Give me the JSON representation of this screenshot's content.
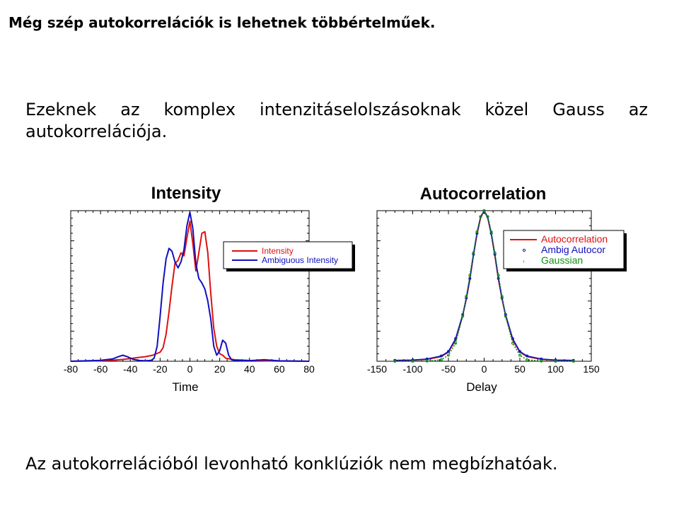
{
  "slide": {
    "title": "Még szép autokorrelációk is lehetnek többértelműek.",
    "paragraph1": "Ezeknek az komplex intenzitáselolszásoknak közel Gauss az autokorrelációja.",
    "paragraph2": "Az autokorrelációból levonható konklúziók nem megbízhatóak."
  },
  "chart_data": [
    {
      "type": "line",
      "title": "Intensity",
      "xlabel": "Time",
      "ylabel": "",
      "xlim": [
        -80,
        80
      ],
      "xticks": [
        "-80",
        "-60",
        "-40",
        "-20",
        "0",
        "20",
        "40",
        "60",
        "80"
      ],
      "ylim": [
        0,
        1
      ],
      "legend_position": "top-right",
      "series": [
        {
          "name": "Intensity",
          "color": "#e01010",
          "x": [
            -80,
            -60,
            -50,
            -45,
            -40,
            -35,
            -30,
            -25,
            -20,
            -18,
            -16,
            -14,
            -12,
            -10,
            -8,
            -6,
            -4,
            -2,
            0,
            2,
            4,
            6,
            8,
            10,
            12,
            14,
            16,
            18,
            20,
            22,
            24,
            30,
            40,
            60,
            80
          ],
          "y": [
            0,
            0.003,
            0.008,
            0.012,
            0.018,
            0.025,
            0.03,
            0.04,
            0.06,
            0.09,
            0.18,
            0.33,
            0.5,
            0.65,
            0.67,
            0.72,
            0.7,
            0.82,
            0.93,
            0.78,
            0.6,
            0.72,
            0.85,
            0.86,
            0.72,
            0.45,
            0.22,
            0.1,
            0.05,
            0.04,
            0.02,
            0.01,
            0.005,
            0.001,
            0
          ]
        },
        {
          "name": "Ambiguous Intensity",
          "color": "#1010c0",
          "x": [
            -80,
            -70,
            -60,
            -52,
            -48,
            -45,
            -42,
            -38,
            -34,
            -30,
            -26,
            -24,
            -22,
            -20,
            -18,
            -16,
            -14,
            -12,
            -10,
            -8,
            -6,
            -4,
            -2,
            0,
            2,
            4,
            6,
            8,
            10,
            12,
            14,
            16,
            18,
            20,
            22,
            24,
            26,
            28,
            30,
            40,
            50,
            60,
            80
          ],
          "y": [
            0,
            0.003,
            0.006,
            0.015,
            0.03,
            0.04,
            0.03,
            0.012,
            0.005,
            0.003,
            0.006,
            0.02,
            0.1,
            0.3,
            0.52,
            0.68,
            0.75,
            0.73,
            0.66,
            0.62,
            0.66,
            0.74,
            0.9,
            0.99,
            0.88,
            0.65,
            0.55,
            0.52,
            0.48,
            0.4,
            0.28,
            0.1,
            0.04,
            0.07,
            0.14,
            0.12,
            0.04,
            0.01,
            0.006,
            0.004,
            0.01,
            0.003,
            0
          ]
        }
      ]
    },
    {
      "type": "line",
      "title": "Autocorrelation",
      "xlabel": "Delay",
      "ylabel": "",
      "xlim": [
        -150,
        150
      ],
      "xticks": [
        "-150",
        "-100",
        "-50",
        "0",
        "50",
        "100",
        "150"
      ],
      "ylim": [
        0,
        1
      ],
      "legend_position": "top-right",
      "series": [
        {
          "name": "Autocorrelation",
          "color": "#e01010",
          "x": [
            -125,
            -100,
            -80,
            -60,
            -50,
            -40,
            -30,
            -25,
            -20,
            -15,
            -10,
            -5,
            0,
            5,
            10,
            15,
            20,
            25,
            30,
            40,
            50,
            60,
            80,
            100,
            125
          ],
          "y": [
            0.005,
            0.007,
            0.012,
            0.03,
            0.06,
            0.14,
            0.3,
            0.41,
            0.54,
            0.7,
            0.84,
            0.95,
            1.0,
            0.95,
            0.84,
            0.7,
            0.54,
            0.41,
            0.3,
            0.14,
            0.06,
            0.03,
            0.012,
            0.007,
            0.005
          ]
        },
        {
          "name": "Ambig Autocor",
          "color": "#1010c0",
          "x": [
            -125,
            -100,
            -80,
            -60,
            -50,
            -40,
            -30,
            -25,
            -20,
            -15,
            -10,
            -5,
            0,
            5,
            10,
            15,
            20,
            25,
            30,
            40,
            50,
            60,
            80,
            100,
            125
          ],
          "y": [
            0.006,
            0.008,
            0.015,
            0.035,
            0.065,
            0.15,
            0.31,
            0.42,
            0.55,
            0.71,
            0.85,
            0.96,
            1.0,
            0.96,
            0.85,
            0.71,
            0.55,
            0.42,
            0.31,
            0.15,
            0.065,
            0.035,
            0.015,
            0.008,
            0.006
          ]
        },
        {
          "name": "Gaussian",
          "color": "#109010",
          "x": [
            -125,
            -100,
            -80,
            -60,
            -50,
            -40,
            -30,
            -25,
            -20,
            -15,
            -10,
            -5,
            0,
            5,
            10,
            15,
            20,
            25,
            30,
            40,
            50,
            60,
            80,
            100,
            125
          ],
          "y": [
            0,
            0,
            0.001,
            0.01,
            0.04,
            0.12,
            0.3,
            0.43,
            0.57,
            0.72,
            0.86,
            0.96,
            1.0,
            0.96,
            0.86,
            0.72,
            0.57,
            0.43,
            0.3,
            0.12,
            0.04,
            0.01,
            0.001,
            0,
            0
          ]
        }
      ]
    }
  ]
}
